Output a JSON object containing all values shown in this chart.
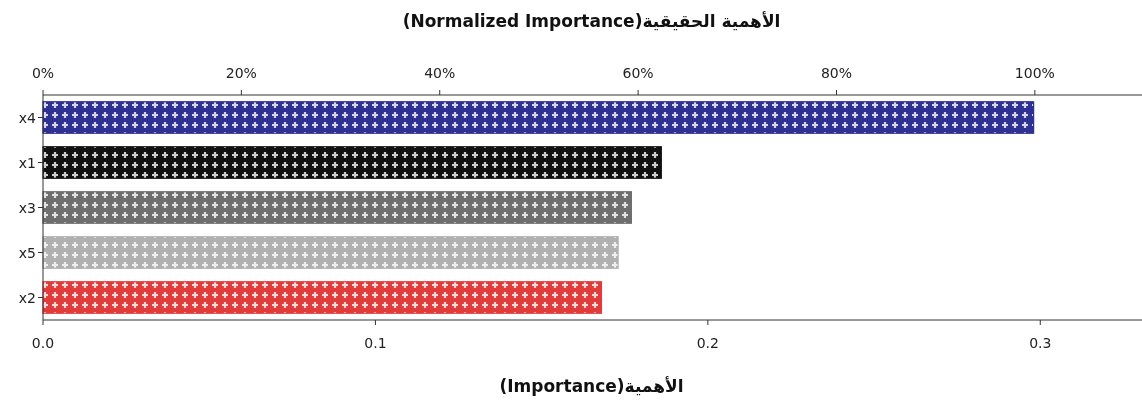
{
  "chart_data": {
    "type": "bar",
    "orientation": "horizontal",
    "categories": [
      "x4",
      "x1",
      "x3",
      "x5",
      "x2"
    ],
    "values": [
      0.298,
      0.186,
      0.177,
      0.173,
      0.168
    ],
    "colors": [
      "#2e3192",
      "#111111",
      "#6e6e6e",
      "#b0b0b0",
      "#e03c3c"
    ],
    "xlabel": "الأهمية(Importance)",
    "x2label": "الأهمية الحقيقية(Normalized Importance)",
    "xlim": [
      0,
      0.33
    ],
    "xticks": [
      {
        "value": 0,
        "label": "0.0"
      },
      0.1,
      0.2,
      0.3
    ],
    "x2lim": [
      0,
      110.6
    ],
    "x2ticks": [
      {
        "value": 0,
        "label": "0%"
      },
      {
        "value": 20,
        "label": "20%"
      },
      {
        "value": 40,
        "label": "40%"
      },
      {
        "value": 60,
        "label": "60%"
      },
      {
        "value": 80,
        "label": "80%"
      },
      {
        "value": 100,
        "label": "100%"
      }
    ]
  }
}
